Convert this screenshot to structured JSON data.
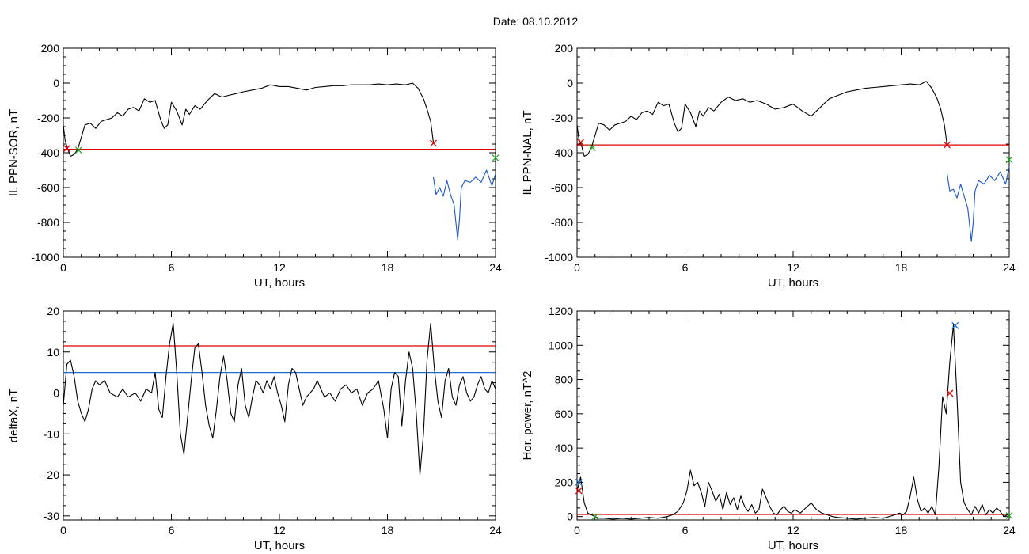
{
  "figure": {
    "date_label": "Date:  08.10.2012"
  },
  "chart_data": [
    {
      "id": "panel-il-sor",
      "type": "line",
      "xlabel": "UT, hours",
      "ylabel": "IL PPN-SOR, nT",
      "xlim": [
        0,
        24
      ],
      "ylim": [
        -1000,
        200
      ],
      "xticks": [
        0,
        6,
        12,
        18,
        24
      ],
      "yticks": [
        200,
        0,
        -200,
        -400,
        -600,
        -800,
        -1000
      ],
      "threshold_lines": [
        {
          "y": -380,
          "color": "#dd0000"
        }
      ],
      "series": [
        {
          "color": "#000000",
          "x": [
            0,
            0.1,
            0.25,
            0.4,
            0.6,
            0.8,
            1.0,
            1.2,
            1.5,
            1.8,
            2.1,
            2.4,
            2.7,
            3.0,
            3.3,
            3.6,
            3.9,
            4.2,
            4.5,
            4.8,
            5.1,
            5.4,
            5.6,
            5.8,
            6.0,
            6.3,
            6.6,
            6.8,
            7.0,
            7.3,
            7.6,
            8.0,
            8.4,
            8.8,
            9.2,
            9.6,
            10.0,
            10.5,
            11.0,
            11.5,
            12.0,
            12.5,
            13.0,
            13.5,
            14.0,
            14.5,
            15.0,
            15.5,
            16.0,
            16.5,
            17.0,
            17.5,
            18.0,
            18.5,
            19.0,
            19.4,
            19.7,
            20.0,
            20.2,
            20.4,
            20.55
          ],
          "y": [
            -240,
            -330,
            -380,
            -420,
            -410,
            -380,
            -310,
            -240,
            -230,
            -260,
            -220,
            -210,
            -200,
            -170,
            -190,
            -150,
            -140,
            -160,
            -90,
            -110,
            -100,
            -210,
            -260,
            -240,
            -110,
            -160,
            -240,
            -150,
            -180,
            -130,
            -150,
            -100,
            -60,
            -80,
            -70,
            -60,
            -50,
            -40,
            -30,
            -10,
            -20,
            -20,
            -30,
            -40,
            -25,
            -20,
            -15,
            -15,
            -10,
            -10,
            -10,
            -5,
            -10,
            -5,
            -10,
            0,
            -30,
            -90,
            -150,
            -220,
            -340
          ]
        },
        {
          "color": "#1a56c8",
          "x": [
            20.55,
            20.7,
            20.9,
            21.1,
            21.3,
            21.5,
            21.7,
            21.9,
            22.0,
            22.1,
            22.3,
            22.6,
            22.9,
            23.2,
            23.5,
            23.8,
            24.0
          ],
          "y": [
            -540,
            -640,
            -600,
            -650,
            -560,
            -640,
            -700,
            -900,
            -780,
            -600,
            -560,
            -570,
            -540,
            -570,
            -500,
            -590,
            -520
          ]
        }
      ],
      "markers": [
        {
          "x": 0.2,
          "y": -375,
          "color": "#dd0000"
        },
        {
          "x": 0.85,
          "y": -385,
          "color": "#22aa22"
        },
        {
          "x": 20.55,
          "y": -345,
          "color": "#dd0000"
        },
        {
          "x": 24.0,
          "y": -430,
          "color": "#22aa22"
        }
      ]
    },
    {
      "id": "panel-il-nal",
      "type": "line",
      "xlabel": "UT, hours",
      "ylabel": "IL PPN-NAL, nT",
      "xlim": [
        0,
        24
      ],
      "ylim": [
        -1000,
        200
      ],
      "xticks": [
        0,
        6,
        12,
        18,
        24
      ],
      "yticks": [
        200,
        0,
        -200,
        -400,
        -600,
        -800,
        -1000
      ],
      "threshold_lines": [
        {
          "y": -355,
          "color": "#dd0000"
        }
      ],
      "series": [
        {
          "color": "#000000",
          "x": [
            0,
            0.1,
            0.25,
            0.4,
            0.6,
            0.8,
            1.0,
            1.2,
            1.5,
            1.8,
            2.1,
            2.4,
            2.7,
            3.0,
            3.3,
            3.6,
            3.9,
            4.2,
            4.5,
            4.8,
            5.1,
            5.4,
            5.6,
            5.8,
            6.0,
            6.3,
            6.6,
            6.8,
            7.0,
            7.3,
            7.6,
            8.0,
            8.4,
            8.8,
            9.2,
            9.6,
            10.0,
            10.5,
            11.0,
            11.5,
            12.0,
            12.5,
            13.0,
            13.5,
            14.0,
            14.5,
            15.0,
            15.5,
            16.0,
            16.5,
            17.0,
            17.5,
            18.0,
            18.5,
            19.0,
            19.4,
            19.7,
            20.0,
            20.2,
            20.4,
            20.55
          ],
          "y": [
            -240,
            -320,
            -360,
            -420,
            -410,
            -370,
            -300,
            -230,
            -240,
            -270,
            -240,
            -230,
            -220,
            -190,
            -210,
            -170,
            -160,
            -180,
            -110,
            -130,
            -120,
            -230,
            -280,
            -260,
            -120,
            -170,
            -250,
            -160,
            -190,
            -140,
            -160,
            -110,
            -80,
            -100,
            -90,
            -110,
            -100,
            -120,
            -150,
            -140,
            -120,
            -160,
            -190,
            -140,
            -90,
            -70,
            -50,
            -40,
            -30,
            -25,
            -20,
            -15,
            -10,
            -5,
            -10,
            10,
            -30,
            -90,
            -150,
            -240,
            -355
          ]
        },
        {
          "color": "#1a56c8",
          "x": [
            20.55,
            20.7,
            20.9,
            21.1,
            21.3,
            21.5,
            21.7,
            21.9,
            22.0,
            22.1,
            22.3,
            22.6,
            22.9,
            23.2,
            23.5,
            23.8,
            24.0
          ],
          "y": [
            -520,
            -620,
            -610,
            -660,
            -580,
            -650,
            -720,
            -910,
            -800,
            -620,
            -560,
            -580,
            -530,
            -560,
            -510,
            -580,
            -480
          ]
        }
      ],
      "markers": [
        {
          "x": 0.2,
          "y": -340,
          "color": "#dd0000"
        },
        {
          "x": 0.85,
          "y": -370,
          "color": "#22aa22"
        },
        {
          "x": 20.55,
          "y": -355,
          "color": "#dd0000"
        },
        {
          "x": 24.0,
          "y": -440,
          "color": "#22aa22"
        }
      ]
    },
    {
      "id": "panel-deltax",
      "type": "line",
      "xlabel": "UT, hours",
      "ylabel": "deltaX, nT",
      "xlim": [
        0,
        24
      ],
      "ylim": [
        -31,
        20
      ],
      "xticks": [
        0,
        6,
        12,
        18,
        24
      ],
      "yticks": [
        20,
        10,
        0,
        -10,
        -20,
        -30
      ],
      "threshold_lines": [
        {
          "y": 11.5,
          "color": "#dd0000"
        },
        {
          "y": 5,
          "color": "#1a6fd0"
        }
      ],
      "series": [
        {
          "color": "#000000",
          "x": [
            0,
            0.2,
            0.4,
            0.6,
            0.8,
            1.0,
            1.2,
            1.4,
            1.6,
            1.8,
            2.0,
            2.3,
            2.6,
            3.0,
            3.3,
            3.6,
            4.0,
            4.3,
            4.6,
            4.9,
            5.1,
            5.3,
            5.5,
            5.7,
            5.9,
            6.1,
            6.3,
            6.5,
            6.7,
            6.9,
            7.1,
            7.3,
            7.5,
            7.7,
            7.9,
            8.1,
            8.3,
            8.5,
            8.7,
            8.9,
            9.1,
            9.3,
            9.5,
            9.7,
            9.9,
            10.1,
            10.3,
            10.5,
            10.7,
            10.9,
            11.1,
            11.3,
            11.5,
            11.7,
            11.9,
            12.1,
            12.3,
            12.5,
            12.7,
            12.9,
            13.1,
            13.3,
            13.5,
            13.7,
            13.9,
            14.1,
            14.3,
            14.5,
            14.8,
            15.1,
            15.4,
            15.7,
            16.0,
            16.3,
            16.6,
            16.9,
            17.2,
            17.5,
            17.8,
            18.0,
            18.2,
            18.4,
            18.6,
            18.8,
            19.0,
            19.2,
            19.4,
            19.6,
            19.8,
            20.0,
            20.2,
            20.4,
            20.6,
            20.8,
            21.0,
            21.2,
            21.4,
            21.6,
            21.8,
            22.0,
            22.2,
            22.4,
            22.6,
            22.8,
            23.0,
            23.2,
            23.4,
            23.6,
            23.8,
            24.0
          ],
          "y": [
            -3,
            7,
            8,
            4,
            -2,
            -5,
            -7,
            -4,
            1,
            3,
            2,
            3,
            0,
            -1,
            1,
            -1,
            0,
            -2,
            1,
            0,
            5,
            -4,
            -6,
            4,
            12,
            17,
            5,
            -10,
            -15,
            -6,
            3,
            11,
            12,
            5,
            -3,
            -8,
            -11,
            -4,
            4,
            9,
            3,
            -5,
            -7,
            2,
            6,
            -3,
            -6,
            -1,
            3,
            2,
            0,
            3,
            1,
            4,
            0,
            -3,
            -7,
            2,
            6,
            5,
            1,
            -3,
            -1,
            0,
            1,
            3,
            1,
            -1,
            0,
            -2,
            1,
            2,
            0,
            1,
            -3,
            0,
            1,
            3,
            -4,
            -11,
            1,
            5,
            4,
            -8,
            3,
            10,
            6,
            -5,
            -20,
            -10,
            8,
            17,
            6,
            -2,
            -6,
            3,
            6,
            -1,
            -3,
            2,
            4,
            0,
            -2,
            -1,
            2,
            4,
            1,
            0,
            3,
            1
          ]
        }
      ],
      "markers": []
    },
    {
      "id": "panel-hor-power",
      "type": "line",
      "xlabel": "UT, hours",
      "ylabel": "Hor. power, nT^2",
      "xlim": [
        0,
        24
      ],
      "ylim": [
        -20,
        1200
      ],
      "xticks": [
        0,
        6,
        12,
        18,
        24
      ],
      "yticks": [
        1200,
        1000,
        800,
        600,
        400,
        200,
        0
      ],
      "threshold_lines": [
        {
          "y": 12,
          "color": "#dd0000"
        }
      ],
      "series": [
        {
          "color": "#000000",
          "x": [
            0,
            0.2,
            0.4,
            0.6,
            0.8,
            1.0,
            1.2,
            1.5,
            2.0,
            2.5,
            3.0,
            3.5,
            4.0,
            4.5,
            5.0,
            5.3,
            5.6,
            5.9,
            6.1,
            6.3,
            6.5,
            6.7,
            6.9,
            7.1,
            7.3,
            7.5,
            7.7,
            7.9,
            8.1,
            8.3,
            8.5,
            8.7,
            8.9,
            9.1,
            9.3,
            9.5,
            9.7,
            9.9,
            10.1,
            10.3,
            10.5,
            10.7,
            10.9,
            11.1,
            11.3,
            11.5,
            11.7,
            11.9,
            12.1,
            12.4,
            12.7,
            13.0,
            13.3,
            13.6,
            13.9,
            14.2,
            14.5,
            15.0,
            15.5,
            16.0,
            16.5,
            17.0,
            17.5,
            17.9,
            18.1,
            18.3,
            18.5,
            18.7,
            18.9,
            19.1,
            19.3,
            19.5,
            19.7,
            19.9,
            20.1,
            20.3,
            20.5,
            20.7,
            20.9,
            21.1,
            21.3,
            21.5,
            21.7,
            21.9,
            22.1,
            22.3,
            22.5,
            22.7,
            22.9,
            23.1,
            23.3,
            23.5,
            23.7,
            23.9,
            24.0
          ],
          "y": [
            150,
            230,
            80,
            20,
            10,
            0,
            -10,
            -10,
            -15,
            -10,
            -15,
            -10,
            -5,
            -10,
            0,
            10,
            30,
            80,
            150,
            270,
            180,
            200,
            140,
            60,
            200,
            150,
            90,
            130,
            40,
            140,
            70,
            110,
            40,
            120,
            60,
            30,
            70,
            20,
            40,
            160,
            110,
            60,
            20,
            10,
            40,
            60,
            30,
            20,
            40,
            20,
            50,
            80,
            40,
            20,
            10,
            0,
            -5,
            -10,
            -15,
            -10,
            -5,
            -10,
            5,
            20,
            10,
            30,
            120,
            230,
            100,
            30,
            50,
            20,
            60,
            10,
            300,
            700,
            600,
            900,
            1120,
            700,
            200,
            80,
            40,
            10,
            60,
            20,
            70,
            10,
            40,
            20,
            50,
            30,
            0,
            10,
            0
          ]
        }
      ],
      "markers": [
        {
          "x": 0.1,
          "y": 200,
          "color": "#1a6fd0"
        },
        {
          "x": 0.1,
          "y": 150,
          "color": "#dd0000"
        },
        {
          "x": 1.0,
          "y": 0,
          "color": "#22aa22"
        },
        {
          "x": 20.7,
          "y": 720,
          "color": "#dd0000"
        },
        {
          "x": 21.0,
          "y": 1115,
          "color": "#1a6fd0"
        },
        {
          "x": 24.0,
          "y": 5,
          "color": "#22aa22"
        }
      ]
    }
  ]
}
